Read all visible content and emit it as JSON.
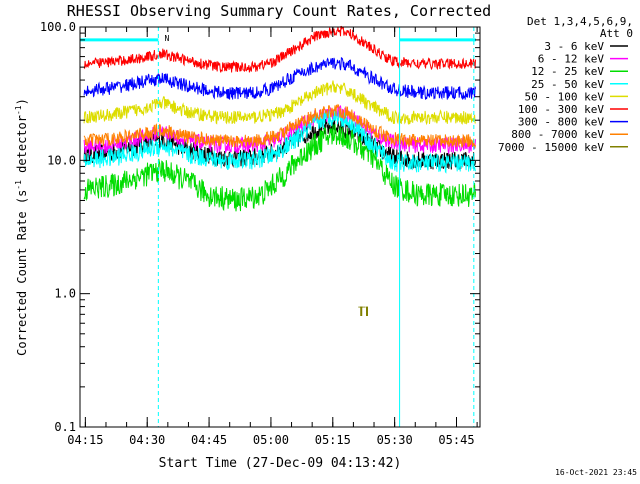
{
  "chart_data": {
    "type": "line",
    "title": "RHESSI Observing Summary Count Rates, Corrected",
    "xlabel": "Start Time (27-Dec-09 04:13:42)",
    "ylabel_main": "Corrected Count Rate (s",
    "ylabel_sup1": "-1",
    "ylabel_mid": " detector",
    "ylabel_sup2": "-1",
    "ylabel_end": ")",
    "timestamp": "16-Oct-2021 23:45",
    "y_scale": "log",
    "ylim": [
      0.1,
      100
    ],
    "xlim_minutes": [
      0,
      97
    ],
    "x_ticks": [
      {
        "min": 1.3,
        "label": "04:15"
      },
      {
        "min": 16.3,
        "label": "04:30"
      },
      {
        "min": 31.3,
        "label": "04:45"
      },
      {
        "min": 46.3,
        "label": "05:00"
      },
      {
        "min": 61.3,
        "label": "05:15"
      },
      {
        "min": 76.3,
        "label": "05:30"
      },
      {
        "min": 91.3,
        "label": "05:45"
      }
    ],
    "y_ticks": [
      {
        "v": 0.1,
        "label": "0.1"
      },
      {
        "v": 1.0,
        "label": "1.0"
      },
      {
        "v": 10.0,
        "label": "10.0"
      },
      {
        "v": 100.0,
        "label": "100.0"
      }
    ],
    "legend_header": [
      "Det 1,3,4,5,6,9,",
      "Att 0"
    ],
    "legend_placement": "right",
    "night_intervals_min": [
      [
        0,
        19
      ],
      [
        77.5,
        96
      ]
    ],
    "saa_dashed_lines_min": [
      19,
      95.5
    ],
    "solid_edge_lines_min": [
      0,
      77.5
    ],
    "night_bar_level": 80,
    "night_marker_label": "N",
    "night_marker_min": 20.5,
    "series": [
      {
        "name": "3 - 6 keV",
        "color": "#000000",
        "points": [
          [
            1,
            11
          ],
          [
            8,
            11.5
          ],
          [
            14,
            13
          ],
          [
            20,
            14.5
          ],
          [
            26,
            12
          ],
          [
            34,
            10.5
          ],
          [
            42,
            10.5
          ],
          [
            47,
            11.5
          ],
          [
            52,
            14
          ],
          [
            57,
            17
          ],
          [
            62,
            18
          ],
          [
            66,
            16.5
          ],
          [
            71,
            13
          ],
          [
            76,
            10.5
          ],
          [
            82,
            10
          ],
          [
            90,
            10
          ],
          [
            96,
            10
          ]
        ],
        "noise": 0.07
      },
      {
        "name": "6 - 12 keV",
        "color": "#ff00ff",
        "points": [
          [
            1,
            12.5
          ],
          [
            8,
            13
          ],
          [
            14,
            14.5
          ],
          [
            20,
            16.5
          ],
          [
            26,
            14
          ],
          [
            34,
            13
          ],
          [
            42,
            13
          ],
          [
            47,
            14
          ],
          [
            52,
            17
          ],
          [
            57,
            21
          ],
          [
            62,
            23
          ],
          [
            66,
            21
          ],
          [
            71,
            16
          ],
          [
            76,
            13.5
          ],
          [
            82,
            13
          ],
          [
            90,
            13
          ],
          [
            96,
            13
          ]
        ],
        "noise": 0.06
      },
      {
        "name": "12 - 25 keV",
        "color": "#00dd00",
        "points": [
          [
            1,
            6
          ],
          [
            8,
            6.5
          ],
          [
            14,
            7.5
          ],
          [
            20,
            8.5
          ],
          [
            26,
            7
          ],
          [
            31,
            5.5
          ],
          [
            38,
            5
          ],
          [
            44,
            5.5
          ],
          [
            49,
            7.5
          ],
          [
            54,
            11
          ],
          [
            59,
            14.5
          ],
          [
            62,
            16
          ],
          [
            66,
            14
          ],
          [
            71,
            10.5
          ],
          [
            76,
            6.5
          ],
          [
            82,
            5.5
          ],
          [
            90,
            5.5
          ],
          [
            96,
            5.5
          ]
        ],
        "noise": 0.09
      },
      {
        "name": "25 - 50 keV",
        "color": "#00ffff",
        "points": [
          [
            1,
            10
          ],
          [
            8,
            10.5
          ],
          [
            14,
            11.5
          ],
          [
            20,
            13
          ],
          [
            26,
            11
          ],
          [
            34,
            10
          ],
          [
            42,
            10
          ],
          [
            47,
            11
          ],
          [
            52,
            14
          ],
          [
            57,
            19
          ],
          [
            62,
            22
          ],
          [
            66,
            19
          ],
          [
            71,
            13
          ],
          [
            76,
            9.5
          ],
          [
            82,
            9.5
          ],
          [
            90,
            9.5
          ],
          [
            96,
            9.5
          ]
        ],
        "noise": 0.07
      },
      {
        "name": "50 - 100 keV",
        "color": "#dddd00",
        "points": [
          [
            1,
            21
          ],
          [
            8,
            22
          ],
          [
            14,
            24
          ],
          [
            20,
            27
          ],
          [
            26,
            23
          ],
          [
            34,
            21
          ],
          [
            42,
            21
          ],
          [
            47,
            22
          ],
          [
            52,
            26
          ],
          [
            57,
            32
          ],
          [
            62,
            36
          ],
          [
            66,
            32
          ],
          [
            71,
            25
          ],
          [
            76,
            21
          ],
          [
            82,
            21
          ],
          [
            90,
            21
          ],
          [
            96,
            21
          ]
        ],
        "noise": 0.05
      },
      {
        "name": "100 - 300 keV",
        "color": "#ff0000",
        "points": [
          [
            1,
            53
          ],
          [
            8,
            55
          ],
          [
            14,
            58
          ],
          [
            20,
            63
          ],
          [
            26,
            56
          ],
          [
            34,
            50
          ],
          [
            42,
            50
          ],
          [
            47,
            55
          ],
          [
            52,
            68
          ],
          [
            57,
            85
          ],
          [
            62,
            95
          ],
          [
            66,
            88
          ],
          [
            71,
            68
          ],
          [
            76,
            55
          ],
          [
            82,
            53
          ],
          [
            90,
            53
          ],
          [
            96,
            53
          ]
        ],
        "noise": 0.04
      },
      {
        "name": "300 - 800 keV",
        "color": "#0000ff",
        "points": [
          [
            1,
            33
          ],
          [
            8,
            35
          ],
          [
            14,
            38
          ],
          [
            20,
            41
          ],
          [
            26,
            36
          ],
          [
            34,
            32
          ],
          [
            42,
            32
          ],
          [
            47,
            35
          ],
          [
            52,
            43
          ],
          [
            57,
            50
          ],
          [
            62,
            54
          ],
          [
            66,
            50
          ],
          [
            71,
            41
          ],
          [
            76,
            34
          ],
          [
            82,
            32
          ],
          [
            90,
            32
          ],
          [
            96,
            32
          ]
        ],
        "noise": 0.05
      },
      {
        "name": "800 - 7000 keV",
        "color": "#ff8000",
        "points": [
          [
            1,
            14
          ],
          [
            8,
            14.5
          ],
          [
            14,
            15.5
          ],
          [
            20,
            17
          ],
          [
            26,
            15
          ],
          [
            34,
            14
          ],
          [
            42,
            14
          ],
          [
            47,
            15
          ],
          [
            52,
            18
          ],
          [
            57,
            22
          ],
          [
            62,
            24
          ],
          [
            66,
            22
          ],
          [
            71,
            17
          ],
          [
            76,
            14.5
          ],
          [
            82,
            14
          ],
          [
            90,
            14
          ],
          [
            96,
            14
          ]
        ],
        "noise": 0.05
      },
      {
        "name": "7000 - 15000 keV",
        "color": "#808000",
        "points": [],
        "noise": 0,
        "fragments": [
          {
            "x": [
              67.5,
              69
            ],
            "y": 0.8,
            "type": "dots"
          },
          {
            "x": [
              68.2,
              68.2
            ],
            "y": [
              0.68,
              0.8
            ],
            "type": "tick"
          },
          {
            "x": [
              69.6,
              69.6
            ],
            "y": [
              0.68,
              0.8
            ],
            "type": "tick"
          }
        ]
      }
    ]
  }
}
